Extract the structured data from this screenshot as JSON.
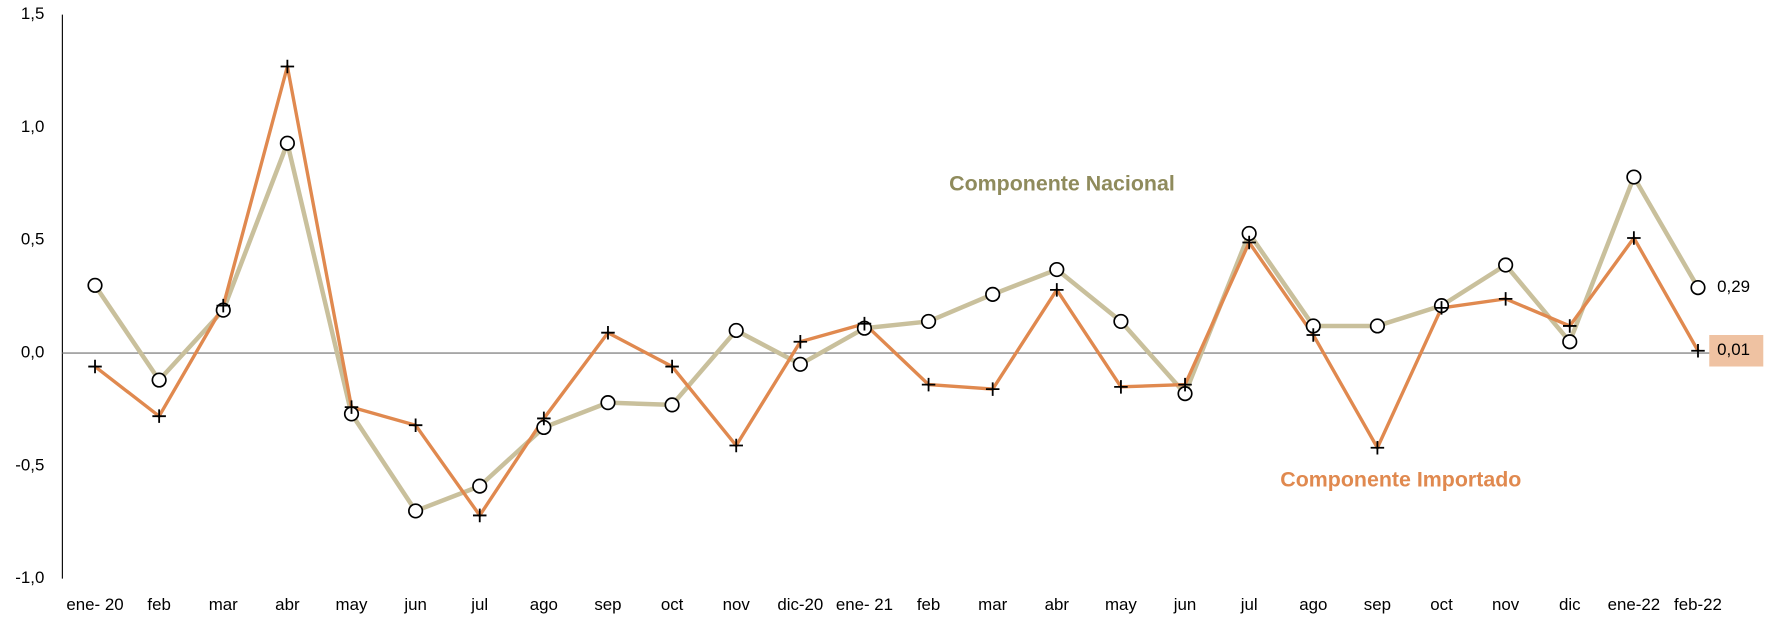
{
  "chart_data": {
    "type": "line",
    "categories": [
      "ene- 20",
      "feb",
      "mar",
      "abr",
      "may",
      "jun",
      "jul",
      "ago",
      "sep",
      "oct",
      "nov",
      "dic-20",
      "ene- 21",
      "feb",
      "mar",
      "abr",
      "may",
      "jun",
      "jul",
      "ago",
      "sep",
      "oct",
      "nov",
      "dic",
      "ene-22",
      "feb-22"
    ],
    "series": [
      {
        "name": "Componente Nacional",
        "color": "#c9c09c",
        "label_color": "#8f8b5c",
        "marker": "circle",
        "values": [
          0.3,
          -0.12,
          0.19,
          0.93,
          -0.27,
          -0.7,
          -0.59,
          -0.33,
          -0.22,
          -0.23,
          0.1,
          -0.05,
          0.11,
          0.14,
          0.26,
          0.37,
          0.14,
          -0.18,
          0.53,
          0.12,
          0.12,
          0.21,
          0.39,
          0.05,
          0.78,
          0.29
        ],
        "value_labels": [
          null,
          null,
          null,
          null,
          null,
          null,
          null,
          null,
          null,
          null,
          null,
          null,
          null,
          null,
          null,
          null,
          null,
          null,
          null,
          null,
          null,
          null,
          null,
          null,
          null,
          "0,29"
        ]
      },
      {
        "name": "Componente Importado",
        "color": "#e0894f",
        "label_color": "#e0894f",
        "marker": "plus",
        "values": [
          -0.06,
          -0.28,
          0.21,
          1.27,
          -0.24,
          -0.32,
          -0.72,
          -0.29,
          0.09,
          -0.06,
          -0.41,
          0.05,
          0.13,
          -0.14,
          -0.16,
          0.28,
          -0.15,
          -0.14,
          0.49,
          0.08,
          -0.42,
          0.2,
          0.24,
          0.12,
          0.51,
          0.01
        ],
        "value_labels": [
          null,
          null,
          null,
          null,
          null,
          null,
          null,
          null,
          null,
          null,
          null,
          null,
          null,
          null,
          null,
          null,
          null,
          null,
          null,
          null,
          null,
          null,
          null,
          null,
          null,
          "0,01"
        ]
      }
    ],
    "ylim": [
      -1.0,
      1.5
    ],
    "yticks": [
      {
        "value": 1.5,
        "label": "1,5"
      },
      {
        "value": 1.0,
        "label": "1,0"
      },
      {
        "value": 0.5,
        "label": "0,5"
      },
      {
        "value": 0,
        "label": "0,0"
      },
      {
        "value": -0.5,
        "label": "-0,5"
      },
      {
        "value": -1.0,
        "label": "-1,0"
      }
    ],
    "grid": false
  }
}
